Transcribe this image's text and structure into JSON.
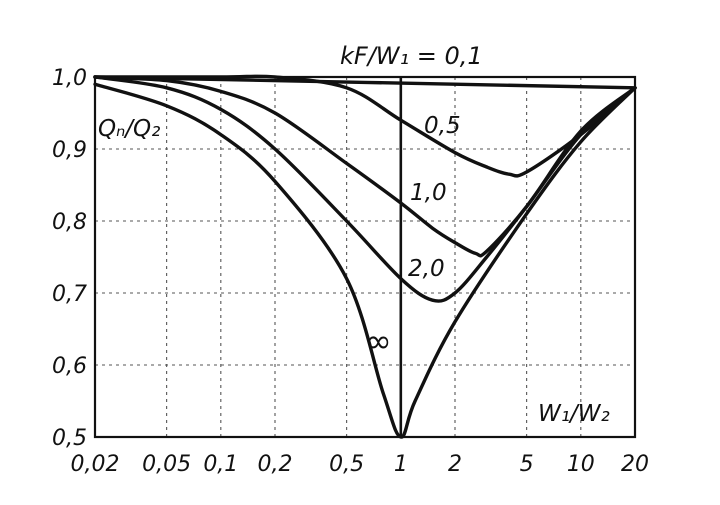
{
  "chart_data": {
    "type": "line",
    "title": "kF/W₁ = 0,1",
    "xlabel": "W₁/W₂",
    "ylabel": "Qₙ/Q₂",
    "xscale": "log",
    "xlim": [
      0.02,
      20
    ],
    "ylim": [
      0.5,
      1.0
    ],
    "grid": true,
    "x_ticks": [
      0.02,
      0.05,
      0.1,
      0.2,
      0.5,
      1,
      2,
      5,
      10,
      20
    ],
    "x_tick_labels": [
      "0,02",
      "0,05",
      "0,1",
      "0,2",
      "0,5",
      "1",
      "2",
      "5",
      "10",
      "20"
    ],
    "y_ticks": [
      0.5,
      0.6,
      0.7,
      0.8,
      0.9,
      1.0
    ],
    "y_tick_labels": [
      "0,5",
      "0,6",
      "0,7",
      "0,8",
      "0,9",
      "1,0"
    ],
    "series": [
      {
        "name": "0,1",
        "x": [
          0.02,
          20
        ],
        "y": [
          1.0,
          0.985
        ]
      },
      {
        "name": "0,5",
        "x": [
          0.02,
          0.1,
          0.2,
          0.5,
          1,
          2,
          3,
          4,
          5,
          10,
          20
        ],
        "y": [
          1.0,
          1.0,
          1.0,
          0.985,
          0.94,
          0.895,
          0.875,
          0.865,
          0.868,
          0.92,
          0.985
        ]
      },
      {
        "name": "1,0",
        "x": [
          0.02,
          0.05,
          0.1,
          0.2,
          0.5,
          1,
          1.5,
          2,
          2.6,
          3,
          5,
          10,
          20
        ],
        "y": [
          1.0,
          0.995,
          0.98,
          0.95,
          0.88,
          0.825,
          0.79,
          0.77,
          0.755,
          0.758,
          0.82,
          0.925,
          0.985
        ]
      },
      {
        "name": "2,0",
        "x": [
          0.02,
          0.05,
          0.1,
          0.2,
          0.5,
          1,
          1.5,
          2,
          3,
          5,
          10,
          20
        ],
        "y": [
          1.0,
          0.985,
          0.955,
          0.9,
          0.8,
          0.72,
          0.69,
          0.7,
          0.75,
          0.82,
          0.92,
          0.985
        ]
      },
      {
        "name": "∞",
        "x": [
          0.02,
          0.05,
          0.1,
          0.2,
          0.5,
          0.8,
          1,
          1.2,
          2,
          5,
          10,
          20
        ],
        "y": [
          0.99,
          0.96,
          0.92,
          0.855,
          0.72,
          0.56,
          0.5,
          0.55,
          0.66,
          0.81,
          0.91,
          0.985
        ]
      }
    ],
    "curve_labels": [
      "0,5",
      "1,0",
      "2,0",
      "∞"
    ]
  }
}
